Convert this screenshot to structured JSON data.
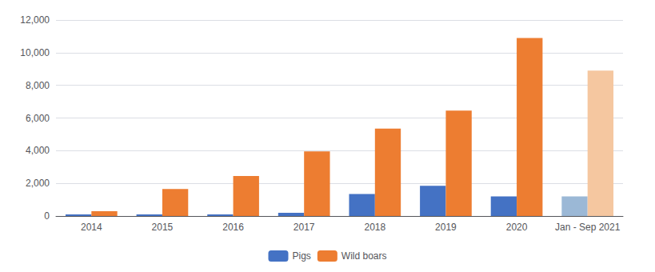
{
  "chart_data": {
    "type": "bar",
    "categories": [
      "2014",
      "2015",
      "2016",
      "2017",
      "2018",
      "2019",
      "2020",
      "Jan - Sep 2021"
    ],
    "series": [
      {
        "name": "Pigs",
        "color": "#4472C4",
        "colors": [
          "#4472C4",
          "#4472C4",
          "#4472C4",
          "#4472C4",
          "#4472C4",
          "#4472C4",
          "#4472C4",
          "#9BB8D6"
        ],
        "values": [
          100,
          100,
          100,
          200,
          1350,
          1850,
          1200,
          1200
        ]
      },
      {
        "name": "Wild boars",
        "color": "#ED7D31",
        "colors": [
          "#ED7D31",
          "#ED7D31",
          "#ED7D31",
          "#ED7D31",
          "#ED7D31",
          "#ED7D31",
          "#ED7D31",
          "#F5C7A0"
        ],
        "values": [
          300,
          1650,
          2450,
          3950,
          5350,
          6450,
          10900,
          8900
        ]
      }
    ],
    "ylim": [
      0,
      12000
    ],
    "yticks": [
      0,
      2000,
      4000,
      6000,
      8000,
      10000,
      12000
    ],
    "grid": true,
    "legend": "bottom"
  }
}
